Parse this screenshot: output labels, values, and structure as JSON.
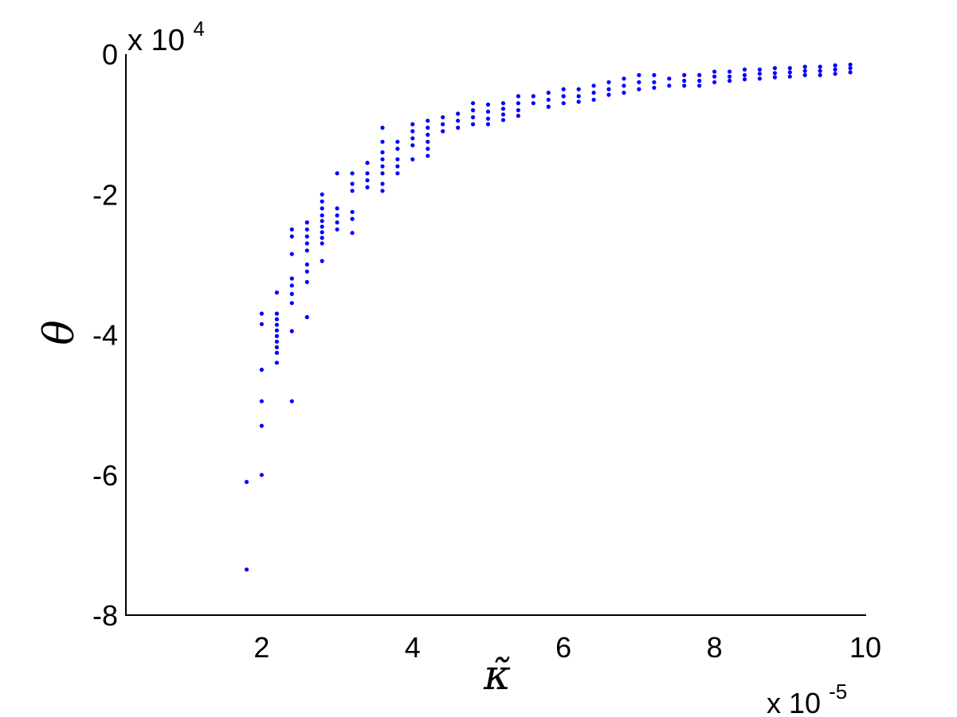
{
  "chart_data": {
    "type": "scatter",
    "title": "",
    "xlabel": "κ̃",
    "ylabel": "θ",
    "xlim": [
      0.2,
      10
    ],
    "ylim": [
      -8,
      0
    ],
    "x_multiplier": "x 10",
    "x_multiplier_exp": "-5",
    "y_multiplier": "x 10",
    "y_multiplier_exp": "4",
    "grid": false,
    "legend": "none",
    "marker_color": "#0000ff",
    "x_ticks": [
      {
        "value": 2,
        "label": "2"
      },
      {
        "value": 4,
        "label": "4"
      },
      {
        "value": 6,
        "label": "6"
      },
      {
        "value": 8,
        "label": "8"
      },
      {
        "value": 10,
        "label": "10"
      }
    ],
    "y_ticks": [
      {
        "value": 0,
        "label": "0"
      },
      {
        "value": -2,
        "label": "-2"
      },
      {
        "value": -4,
        "label": "-4"
      },
      {
        "value": -6,
        "label": "-6"
      },
      {
        "value": -8,
        "label": "-8"
      }
    ],
    "columns": [
      {
        "x": 1.8,
        "y": [
          -6.1,
          -7.35
        ]
      },
      {
        "x": 2.0,
        "y": [
          -3.7,
          -3.85,
          -4.5,
          -4.95,
          -5.3,
          -6.0
        ]
      },
      {
        "x": 2.2,
        "y": [
          -3.4,
          -3.7,
          -3.78,
          -3.86,
          -3.94,
          -4.02,
          -4.1,
          -4.18,
          -4.26,
          -4.4
        ]
      },
      {
        "x": 2.4,
        "y": [
          -2.5,
          -2.6,
          -2.85,
          -3.2,
          -3.3,
          -3.42,
          -3.55,
          -3.95,
          -4.95
        ]
      },
      {
        "x": 2.6,
        "y": [
          -2.4,
          -2.5,
          -2.6,
          -2.7,
          -2.8,
          -3.0,
          -3.1,
          -3.25,
          -3.75
        ]
      },
      {
        "x": 2.8,
        "y": [
          -2.0,
          -2.1,
          -2.2,
          -2.3,
          -2.38,
          -2.46,
          -2.54,
          -2.62,
          -2.7,
          -2.95
        ]
      },
      {
        "x": 3.0,
        "y": [
          -1.7,
          -2.2,
          -2.3,
          -2.4,
          -2.5
        ]
      },
      {
        "x": 3.2,
        "y": [
          -1.7,
          -1.85,
          -1.95,
          -2.25,
          -2.35,
          -2.55
        ]
      },
      {
        "x": 3.4,
        "y": [
          -1.55,
          -1.7,
          -1.8,
          -1.9
        ]
      },
      {
        "x": 3.6,
        "y": [
          -1.05,
          -1.25,
          -1.4,
          -1.5,
          -1.6,
          -1.7,
          -1.85,
          -1.95
        ]
      },
      {
        "x": 3.8,
        "y": [
          -1.25,
          -1.35,
          -1.5,
          -1.6,
          -1.7
        ]
      },
      {
        "x": 4.0,
        "y": [
          -1.0,
          -1.1,
          -1.2,
          -1.3,
          -1.5
        ]
      },
      {
        "x": 4.2,
        "y": [
          -0.95,
          -1.05,
          -1.15,
          -1.25,
          -1.35,
          -1.45
        ]
      },
      {
        "x": 4.4,
        "y": [
          -0.9,
          -1.0,
          -1.1
        ]
      },
      {
        "x": 4.6,
        "y": [
          -0.85,
          -0.95,
          -1.05
        ]
      },
      {
        "x": 4.8,
        "y": [
          -0.7,
          -0.8,
          -0.9,
          -1.0
        ]
      },
      {
        "x": 5.0,
        "y": [
          -0.72,
          -0.82,
          -0.92,
          -1.0
        ]
      },
      {
        "x": 5.2,
        "y": [
          -0.7,
          -0.78,
          -0.86,
          -0.94
        ]
      },
      {
        "x": 5.4,
        "y": [
          -0.6,
          -0.7,
          -0.8,
          -0.88
        ]
      },
      {
        "x": 5.6,
        "y": [
          -0.6,
          -0.7
        ]
      },
      {
        "x": 5.8,
        "y": [
          -0.55,
          -0.65,
          -0.75
        ]
      },
      {
        "x": 6.0,
        "y": [
          -0.5,
          -0.6,
          -0.7
        ]
      },
      {
        "x": 6.2,
        "y": [
          -0.5,
          -0.6,
          -0.68
        ]
      },
      {
        "x": 6.4,
        "y": [
          -0.45,
          -0.55,
          -0.65
        ]
      },
      {
        "x": 6.6,
        "y": [
          -0.4,
          -0.5,
          -0.58
        ]
      },
      {
        "x": 6.8,
        "y": [
          -0.35,
          -0.45,
          -0.55
        ]
      },
      {
        "x": 7.0,
        "y": [
          -0.3,
          -0.4,
          -0.5
        ]
      },
      {
        "x": 7.2,
        "y": [
          -0.3,
          -0.4,
          -0.48
        ]
      },
      {
        "x": 7.4,
        "y": [
          -0.35,
          -0.45
        ]
      },
      {
        "x": 7.6,
        "y": [
          -0.3,
          -0.38,
          -0.45
        ]
      },
      {
        "x": 7.8,
        "y": [
          -0.3,
          -0.38,
          -0.45
        ]
      },
      {
        "x": 8.0,
        "y": [
          -0.25,
          -0.32,
          -0.4
        ]
      },
      {
        "x": 8.2,
        "y": [
          -0.25,
          -0.32,
          -0.38
        ]
      },
      {
        "x": 8.4,
        "y": [
          -0.22,
          -0.3,
          -0.36
        ]
      },
      {
        "x": 8.6,
        "y": [
          -0.22,
          -0.28,
          -0.35
        ]
      },
      {
        "x": 8.8,
        "y": [
          -0.2,
          -0.27,
          -0.33
        ]
      },
      {
        "x": 9.0,
        "y": [
          -0.2,
          -0.26,
          -0.32
        ]
      },
      {
        "x": 9.2,
        "y": [
          -0.18,
          -0.24,
          -0.3
        ]
      },
      {
        "x": 9.4,
        "y": [
          -0.18,
          -0.24,
          -0.3
        ]
      },
      {
        "x": 9.6,
        "y": [
          -0.16,
          -0.22,
          -0.28
        ]
      },
      {
        "x": 9.8,
        "y": [
          -0.15,
          -0.2,
          -0.26
        ]
      }
    ]
  }
}
